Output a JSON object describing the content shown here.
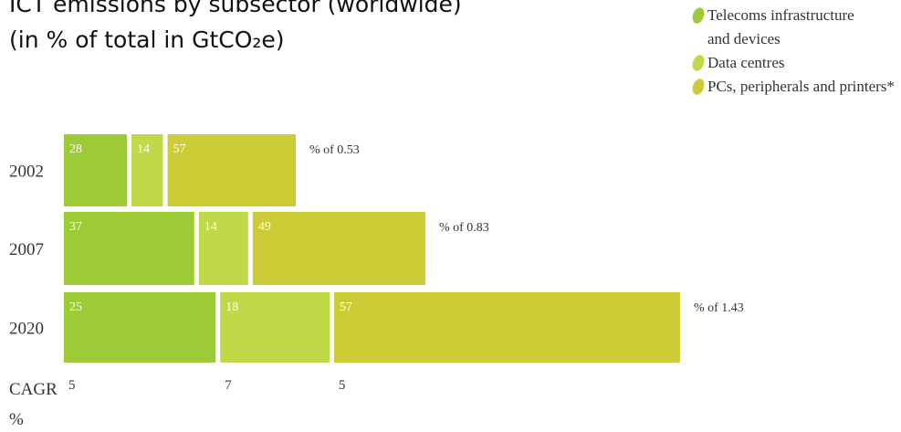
{
  "chart_data": {
    "type": "bar",
    "title": "ICT emissions by subsector (worldwide)",
    "subtitle": "(in % of total in GtCO₂e)",
    "categories": [
      "2002",
      "2007",
      "2020"
    ],
    "totals": [
      0.53,
      0.83,
      1.43
    ],
    "total_labels": [
      "% of 0.53",
      "% of 0.83",
      "% of 1.43"
    ],
    "series": [
      {
        "name": "Telecoms infrastructure and devices",
        "color": "#9dcb38",
        "values": [
          28,
          37,
          25
        ]
      },
      {
        "name": "Data centres",
        "color": "#bfd948",
        "values": [
          14,
          14,
          18
        ]
      },
      {
        "name": "PCs, peripherals and printers*",
        "color": "#cccc36",
        "values": [
          57,
          49,
          57
        ]
      }
    ],
    "cagr_label": [
      "CAGR",
      "%"
    ],
    "cagr": [
      5,
      7,
      5
    ]
  }
}
